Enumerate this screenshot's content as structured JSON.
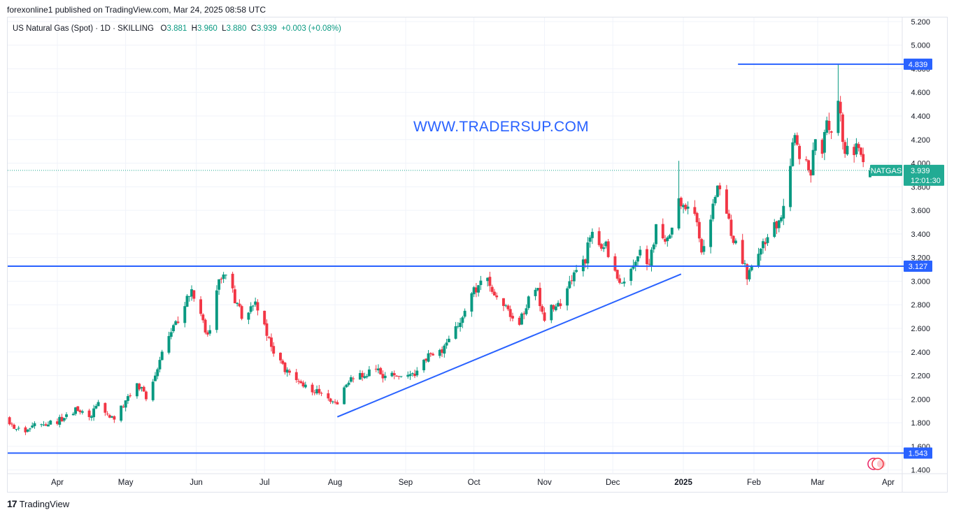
{
  "header": {
    "published_text": "forexonline1 published on TradingView.com, Mar 24, 2025 08:58 UTC"
  },
  "legend": {
    "symbol_text": "US Natural Gas (Spot) · 1D · SKILLING",
    "o_label": "O",
    "o_value": "3.881",
    "h_label": "H",
    "h_value": "3.960",
    "l_label": "L",
    "l_value": "3.880",
    "c_label": "C",
    "c_value": "3.939",
    "change": "+0.003 (+0.08%)"
  },
  "watermark": "WWW.TRADERSUP.COM",
  "footer": {
    "brand": "TradingView"
  },
  "price_tag": {
    "ticker": "NATGAS",
    "price": "3.939",
    "countdown": "12:01:30"
  },
  "colors": {
    "up": "#089981",
    "down": "#f23645",
    "lines": "#2962ff",
    "price_tag": "#22ab94"
  },
  "chart_data": {
    "type": "candlestick",
    "ylim": [
      1.4,
      5.3
    ],
    "y_ticks": [
      "1.400",
      "1.600",
      "1.800",
      "2.000",
      "2.200",
      "2.400",
      "2.600",
      "2.800",
      "3.000",
      "3.200",
      "3.400",
      "3.600",
      "3.800",
      "4.000",
      "4.200",
      "4.400",
      "4.600",
      "4.800",
      "5.000",
      "5.200"
    ],
    "x_ticks": [
      {
        "label": "Apr",
        "date": "2024-04-01",
        "bold": false
      },
      {
        "label": "May",
        "date": "2024-05-01",
        "bold": false
      },
      {
        "label": "Jun",
        "date": "2024-06-01",
        "bold": false
      },
      {
        "label": "Jul",
        "date": "2024-07-01",
        "bold": false
      },
      {
        "label": "Aug",
        "date": "2024-08-01",
        "bold": false
      },
      {
        "label": "Sep",
        "date": "2024-09-01",
        "bold": false
      },
      {
        "label": "Oct",
        "date": "2024-10-01",
        "bold": false
      },
      {
        "label": "Nov",
        "date": "2024-11-01",
        "bold": false
      },
      {
        "label": "Dec",
        "date": "2024-12-01",
        "bold": false
      },
      {
        "label": "2025",
        "date": "2025-01-01",
        "bold": true
      },
      {
        "label": "Feb",
        "date": "2025-02-01",
        "bold": false
      },
      {
        "label": "Mar",
        "date": "2025-03-01",
        "bold": false
      },
      {
        "label": "Apr",
        "date": "2025-04-01",
        "bold": false
      }
    ],
    "x_range": [
      "2024-03-08",
      "2025-04-14"
    ],
    "current_price": 3.939,
    "horizontal_levels": [
      {
        "price": 4.839,
        "label": "4.839",
        "from": "2025-01-25"
      },
      {
        "price": 3.127,
        "label": "3.127",
        "from": "start"
      },
      {
        "price": 1.543,
        "label": "1.543",
        "from": "start"
      }
    ],
    "trendlines": [
      {
        "from": [
          "2024-08-02",
          1.85
        ],
        "to": [
          "2024-12-31",
          3.06
        ]
      }
    ],
    "closes": [
      [
        "2024-03-08",
        1.85
      ],
      [
        "2024-03-13",
        1.76
      ],
      [
        "2024-03-18",
        1.7
      ],
      [
        "2024-03-22",
        1.78
      ],
      [
        "2024-03-28",
        1.79
      ],
      [
        "2024-04-03",
        1.83
      ],
      [
        "2024-04-09",
        1.91
      ],
      [
        "2024-04-15",
        1.84
      ],
      [
        "2024-04-19",
        1.96
      ],
      [
        "2024-04-25",
        1.83
      ],
      [
        "2024-05-01",
        1.98
      ],
      [
        "2024-05-06",
        2.13
      ],
      [
        "2024-05-10",
        2.02
      ],
      [
        "2024-05-15",
        2.28
      ],
      [
        "2024-05-20",
        2.55
      ],
      [
        "2024-05-24",
        2.66
      ],
      [
        "2024-05-28",
        2.88
      ],
      [
        "2024-05-30",
        2.92
      ],
      [
        "2024-06-03",
        2.72
      ],
      [
        "2024-06-05",
        2.55
      ],
      [
        "2024-06-07",
        2.62
      ],
      [
        "2024-06-11",
        2.98
      ],
      [
        "2024-06-13",
        3.07
      ],
      [
        "2024-06-17",
        2.9
      ],
      [
        "2024-06-21",
        2.72
      ],
      [
        "2024-06-27",
        2.82
      ],
      [
        "2024-07-01",
        2.61
      ],
      [
        "2024-07-05",
        2.38
      ],
      [
        "2024-07-10",
        2.26
      ],
      [
        "2024-07-15",
        2.14
      ],
      [
        "2024-07-19",
        2.1
      ],
      [
        "2024-07-24",
        2.07
      ],
      [
        "2024-07-29",
        2.0
      ],
      [
        "2024-08-02",
        1.98
      ],
      [
        "2024-08-07",
        2.15
      ],
      [
        "2024-08-13",
        2.2
      ],
      [
        "2024-08-19",
        2.28
      ],
      [
        "2024-08-23",
        2.18
      ],
      [
        "2024-08-28",
        2.21
      ],
      [
        "2024-09-03",
        2.18
      ],
      [
        "2024-09-09",
        2.31
      ],
      [
        "2024-09-13",
        2.4
      ],
      [
        "2024-09-18",
        2.43
      ],
      [
        "2024-09-24",
        2.63
      ],
      [
        "2024-09-30",
        2.88
      ],
      [
        "2024-10-03",
        2.98
      ],
      [
        "2024-10-07",
        2.99
      ],
      [
        "2024-10-10",
        2.85
      ],
      [
        "2024-10-15",
        2.77
      ],
      [
        "2024-10-21",
        2.67
      ],
      [
        "2024-10-25",
        2.85
      ],
      [
        "2024-10-29",
        2.9
      ],
      [
        "2024-11-01",
        2.68
      ],
      [
        "2024-11-05",
        2.8
      ],
      [
        "2024-11-08",
        2.79
      ],
      [
        "2024-11-12",
        2.97
      ],
      [
        "2024-11-15",
        3.08
      ],
      [
        "2024-11-19",
        3.19
      ],
      [
        "2024-11-21",
        3.42
      ],
      [
        "2024-11-25",
        3.26
      ],
      [
        "2024-11-28",
        3.3
      ],
      [
        "2024-12-02",
        3.08
      ],
      [
        "2024-12-06",
        2.98
      ],
      [
        "2024-12-10",
        3.15
      ],
      [
        "2024-12-13",
        3.25
      ],
      [
        "2024-12-17",
        3.16
      ],
      [
        "2024-12-20",
        3.45
      ],
      [
        "2024-12-24",
        3.36
      ],
      [
        "2024-12-27",
        3.47
      ],
      [
        "2024-12-30",
        3.72
      ],
      [
        "2025-01-02",
        3.62
      ],
      [
        "2025-01-06",
        3.55
      ],
      [
        "2025-01-09",
        3.25
      ],
      [
        "2025-01-13",
        3.52
      ],
      [
        "2025-01-16",
        3.85
      ],
      [
        "2025-01-20",
        3.57
      ],
      [
        "2025-01-23",
        3.35
      ],
      [
        "2025-01-27",
        3.19
      ],
      [
        "2025-01-29",
        3.02
      ],
      [
        "2025-02-03",
        3.22
      ],
      [
        "2025-02-06",
        3.35
      ],
      [
        "2025-02-10",
        3.45
      ],
      [
        "2025-02-13",
        3.58
      ],
      [
        "2025-02-17",
        3.99
      ],
      [
        "2025-02-19",
        4.27
      ],
      [
        "2025-02-21",
        4.05
      ],
      [
        "2025-02-24",
        3.97
      ],
      [
        "2025-02-26",
        3.9
      ],
      [
        "2025-02-28",
        4.22
      ],
      [
        "2025-03-03",
        4.03
      ],
      [
        "2025-03-04",
        4.32
      ],
      [
        "2025-03-05",
        4.38
      ],
      [
        "2025-03-07",
        4.3
      ],
      [
        "2025-03-10",
        4.55
      ],
      [
        "2025-03-11",
        4.36
      ],
      [
        "2025-03-13",
        4.1
      ],
      [
        "2025-03-17",
        4.05
      ],
      [
        "2025-03-19",
        4.18
      ],
      [
        "2025-03-20",
        4.08
      ],
      [
        "2025-03-21",
        3.95
      ],
      [
        "2025-03-24",
        3.939
      ]
    ]
  }
}
